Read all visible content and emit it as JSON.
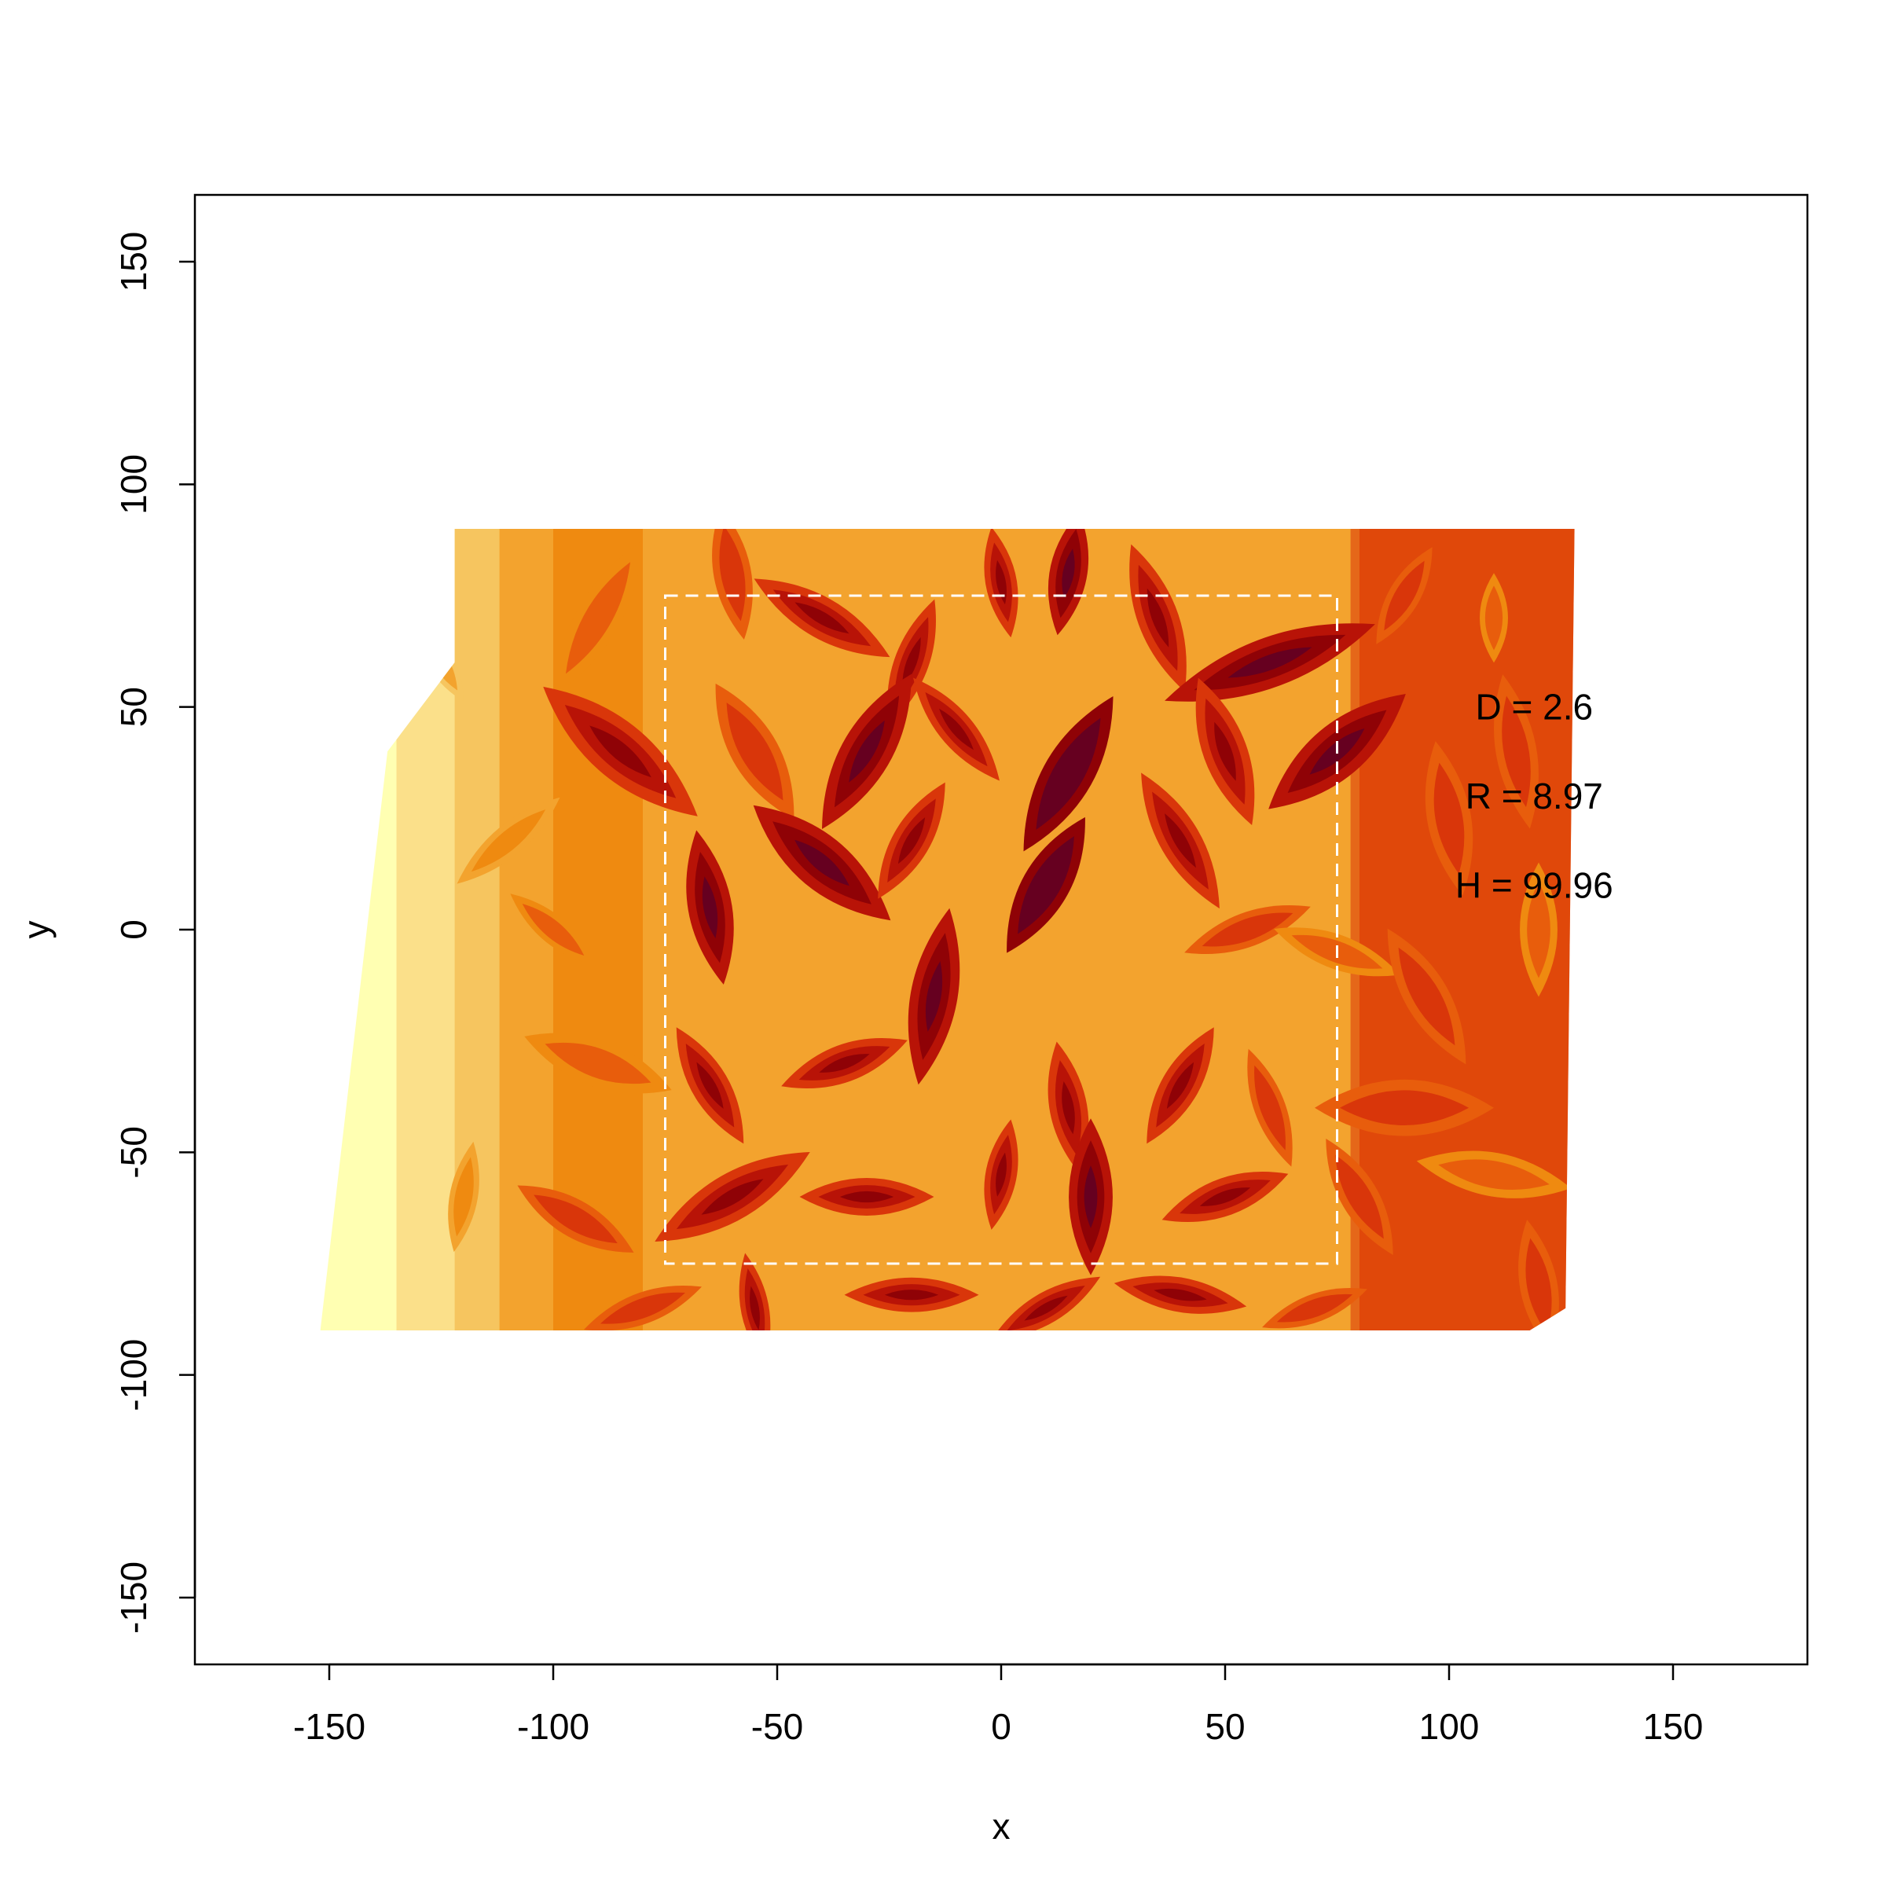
{
  "chart_data": {
    "type": "heatmap",
    "title": "",
    "xlabel": "x",
    "ylabel": "y",
    "xlim": [
      -180,
      180
    ],
    "ylim": [
      -165,
      165
    ],
    "x_ticks": [
      -150,
      -100,
      -50,
      0,
      50,
      100,
      150
    ],
    "y_ticks": [
      -150,
      -100,
      -50,
      0,
      50,
      100,
      150
    ],
    "x_tick_labels": [
      "-150",
      "-100",
      "-50",
      "0",
      "50",
      "100",
      "150"
    ],
    "y_tick_labels": [
      "-150",
      "-100",
      "-50",
      "0",
      "50",
      "100",
      "150"
    ],
    "grid": false,
    "image_extent": {
      "x": [
        -152,
        128
      ],
      "y": [
        -90,
        90
      ]
    },
    "palette": [
      "#ffffb2",
      "#fbe08a",
      "#f6c55f",
      "#f3a32e",
      "#ef8a10",
      "#e85d0c",
      "#d9360a",
      "#b81307",
      "#8f0206",
      "#660020"
    ],
    "dashed_box": {
      "x": [
        -75,
        75
      ],
      "y": [
        -75,
        75
      ],
      "color": "#ffffff"
    },
    "annotations": [
      {
        "text": "D = 2.6",
        "x": 119,
        "y": 50
      },
      {
        "text": "R = 8.97",
        "x": 119,
        "y": 30
      },
      {
        "text": "H = 99.96",
        "x": 119,
        "y": 10
      }
    ]
  }
}
